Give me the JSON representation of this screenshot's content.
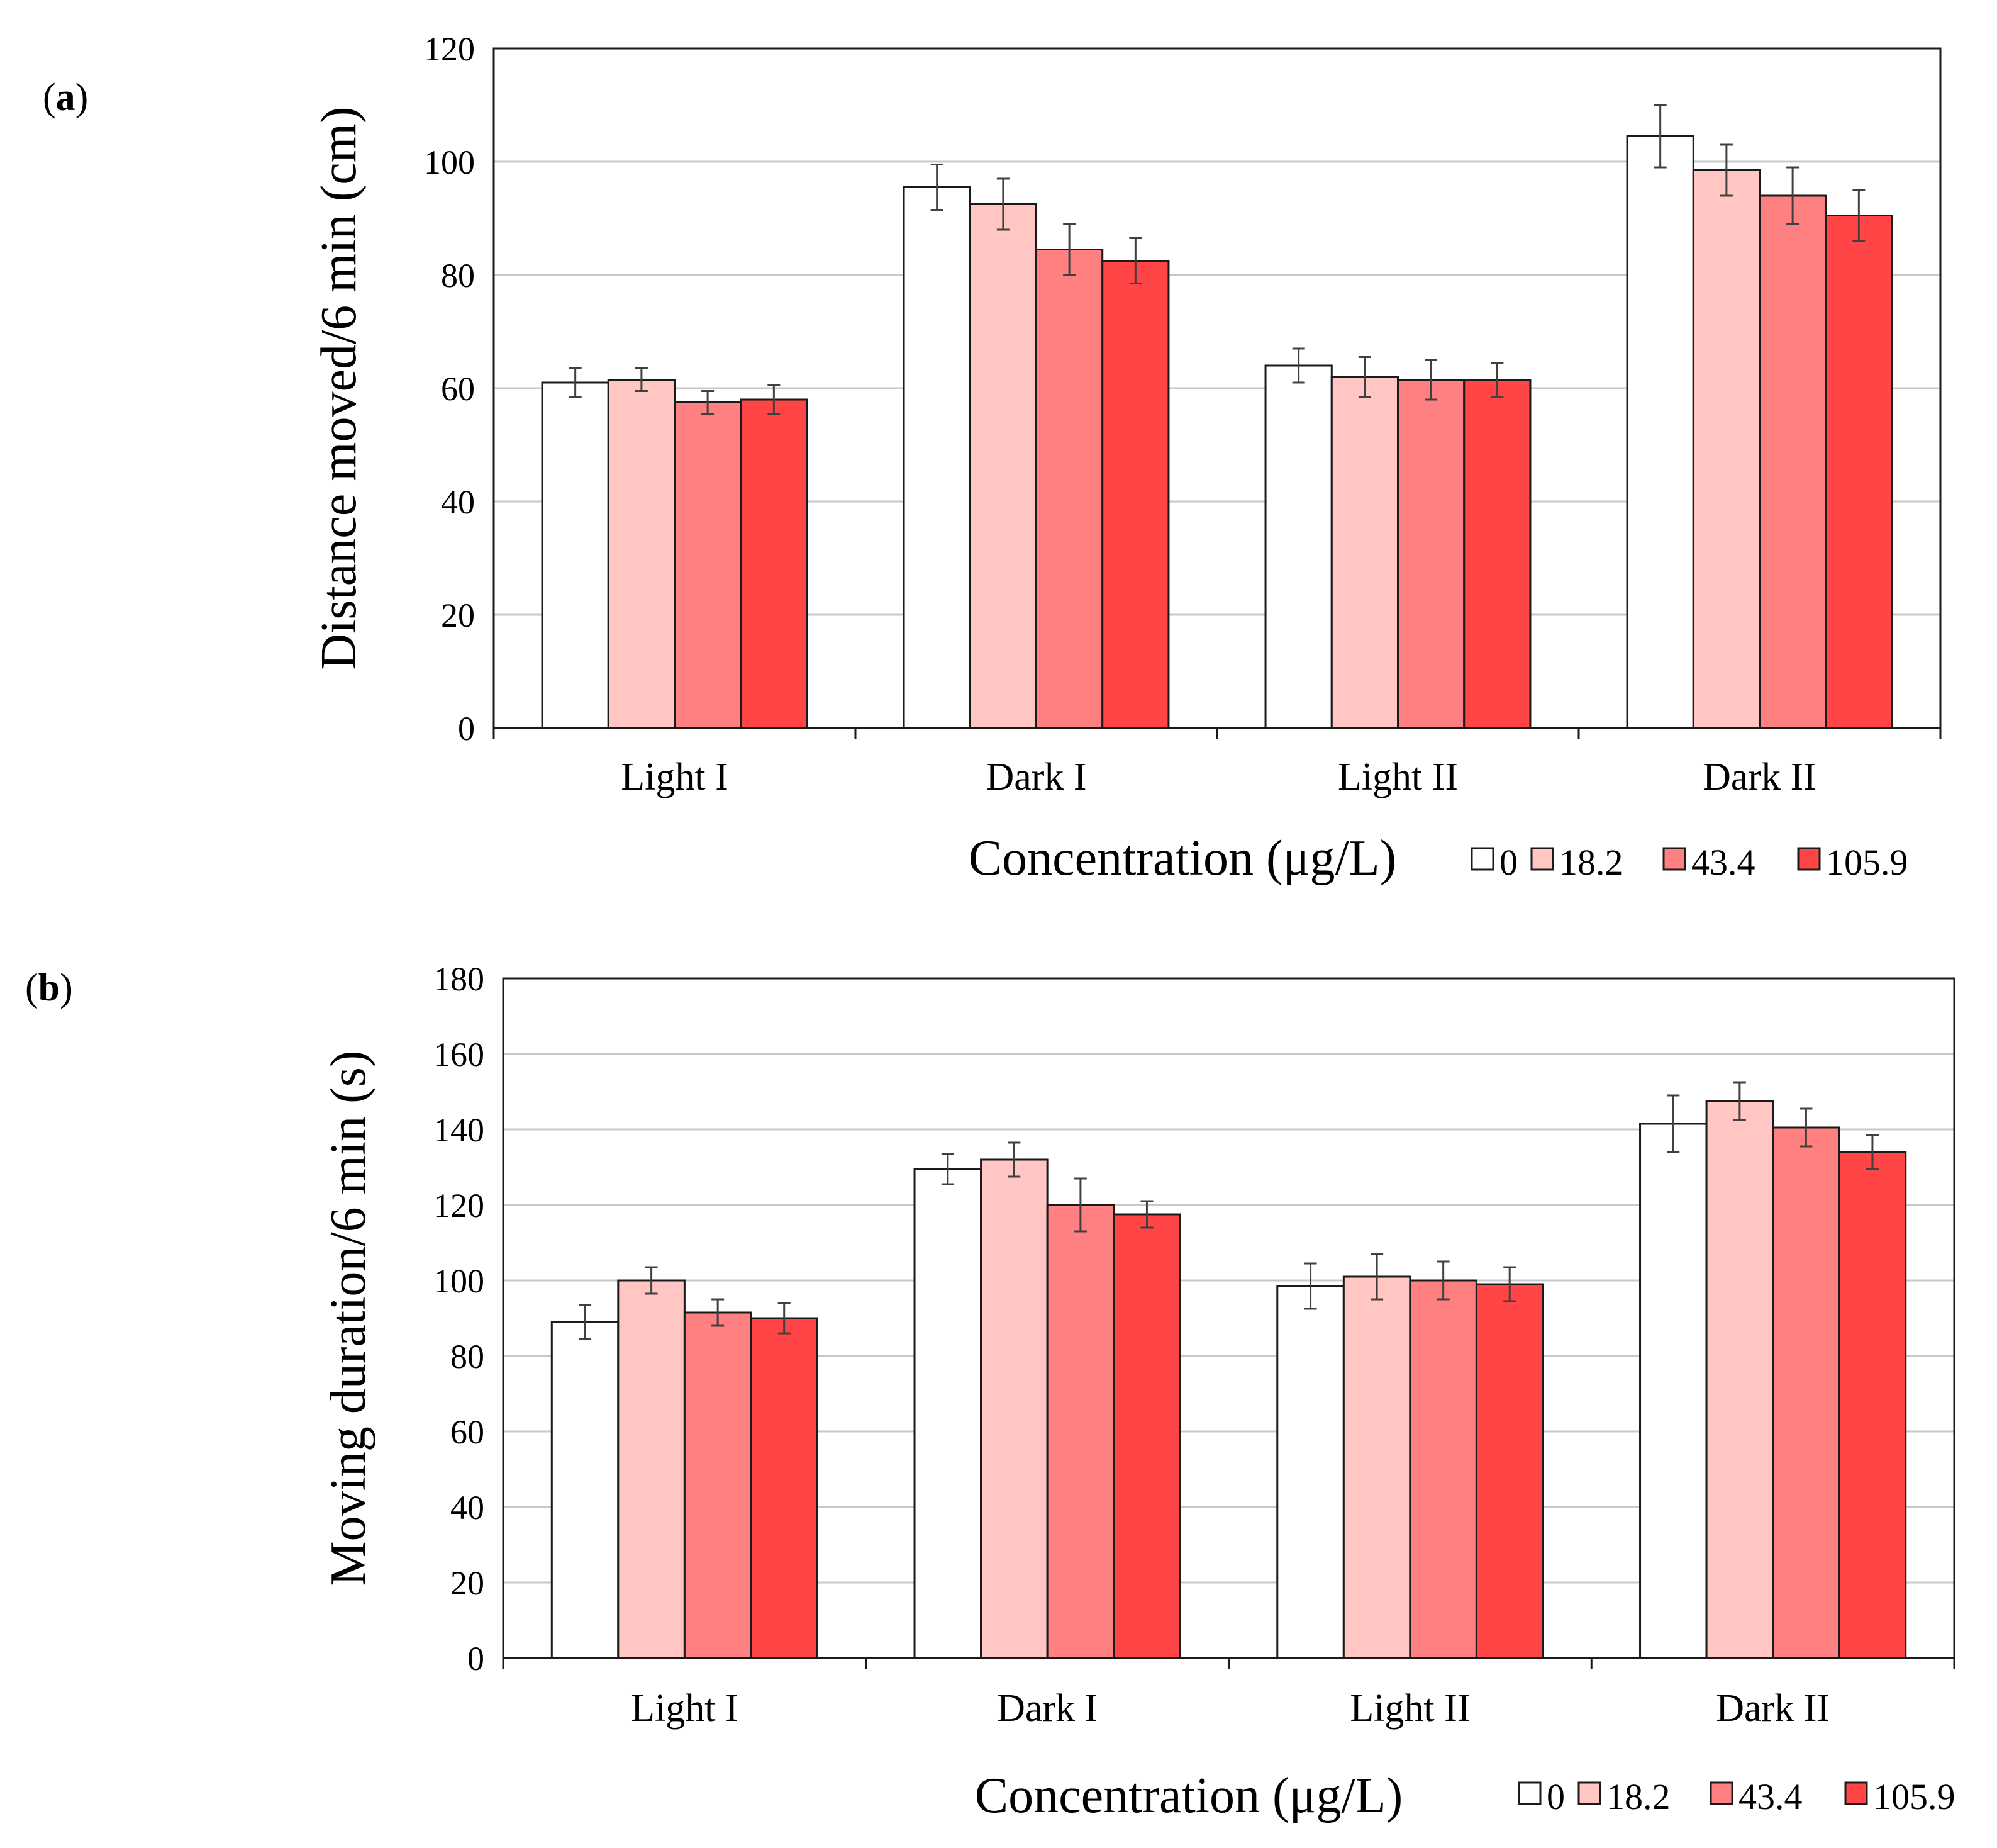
{
  "chart_data": [
    {
      "type": "bar",
      "panel_label": "a",
      "categories": [
        "Light I",
        "Dark I",
        "Light II",
        "Dark II"
      ],
      "series": [
        {
          "name": "0",
          "values": [
            61,
            95.5,
            64,
            104.5
          ],
          "errors": [
            2.5,
            4,
            3,
            5.5
          ]
        },
        {
          "name": "18.2",
          "values": [
            61.5,
            92.5,
            62,
            98.5
          ],
          "errors": [
            2,
            4.5,
            3.5,
            4.5
          ]
        },
        {
          "name": "43.4",
          "values": [
            57.5,
            84.5,
            61.5,
            94
          ],
          "errors": [
            2,
            4.5,
            3.5,
            5
          ]
        },
        {
          "name": "105.9",
          "values": [
            58,
            82.5,
            61.5,
            90.5
          ],
          "errors": [
            2.5,
            4,
            3,
            4.5
          ]
        }
      ],
      "ylabel": "Distance moved/6 min (cm)",
      "xlabel": "Concentration (μg/L)",
      "ylim": [
        0,
        120
      ],
      "yticks": [
        0,
        20,
        40,
        60,
        80,
        100,
        120
      ],
      "grid": true,
      "legend_position": "bottom-right"
    },
    {
      "type": "bar",
      "panel_label": "b",
      "categories": [
        "Light I",
        "Dark I",
        "Light II",
        "Dark II"
      ],
      "series": [
        {
          "name": "0",
          "values": [
            89,
            129.5,
            98.5,
            141.5
          ],
          "errors": [
            4.5,
            4,
            6,
            7.5
          ]
        },
        {
          "name": "18.2",
          "values": [
            100,
            132,
            101,
            147.5
          ],
          "errors": [
            3.5,
            4.5,
            6,
            5
          ]
        },
        {
          "name": "43.4",
          "values": [
            91.5,
            120,
            100,
            140.5
          ],
          "errors": [
            3.5,
            7,
            5,
            5
          ]
        },
        {
          "name": "105.9",
          "values": [
            90,
            117.5,
            99,
            134
          ],
          "errors": [
            4,
            3.5,
            4.5,
            4.5
          ]
        }
      ],
      "ylabel": "Moving duration/6 min (s)",
      "xlabel": "Concentration (μg/L)",
      "ylim": [
        0,
        180
      ],
      "yticks": [
        0,
        20,
        40,
        60,
        80,
        100,
        120,
        140,
        160,
        180
      ],
      "grid": true,
      "legend_position": "bottom-right"
    }
  ],
  "colors": {
    "series": [
      "#ffffff",
      "#ffc6c4",
      "#ff8080",
      "#ff4545"
    ],
    "grid": "#c8c8c8",
    "axis": "#1a1a1a",
    "error": "#404040"
  }
}
